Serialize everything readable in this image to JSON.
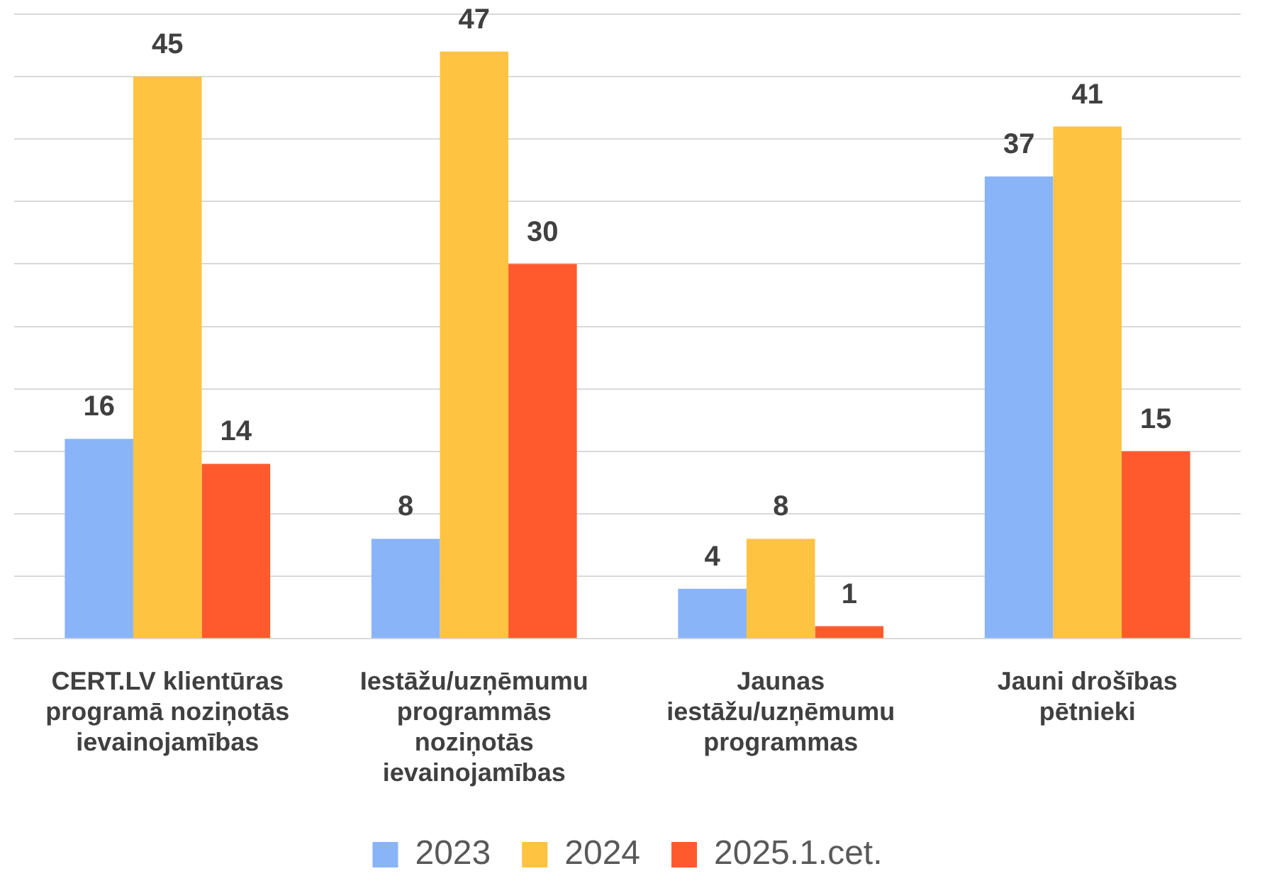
{
  "chart_data": {
    "type": "bar",
    "categories": [
      "CERT.LV klientūras programā noziņotās ievainojamības",
      "Iestāžu/uzņēmumu programmās noziņotās ievainojamības",
      "Jaunas iestāžu/uzņēmumu programmas",
      "Jauni drošības pētnieki"
    ],
    "series": [
      {
        "name": "2023",
        "color": "#8ab4f8",
        "values": [
          16,
          8,
          4,
          37
        ]
      },
      {
        "name": "2024",
        "color": "#ffc342",
        "values": [
          45,
          47,
          8,
          41
        ]
      },
      {
        "name": "2025.1.cet.",
        "color": "#ff5a2e",
        "values": [
          14,
          30,
          1,
          15
        ]
      }
    ],
    "ylim": [
      0,
      50
    ],
    "yticks": [
      {
        "value": 0,
        "label": null
      },
      {
        "value": 5,
        "label": null
      },
      {
        "value": 10,
        "label": null
      },
      {
        "value": 15,
        "label": null
      },
      {
        "value": 20,
        "label": null
      },
      {
        "value": 25,
        "label": null
      },
      {
        "value": 30,
        "label": null
      },
      {
        "value": 35,
        "label": null
      },
      {
        "value": 40,
        "label": null
      },
      {
        "value": 45,
        "label": null
      },
      {
        "value": 50,
        "label": null
      }
    ],
    "grid": "y",
    "tick_labels": "x",
    "data_labels": true,
    "legend": "bottom"
  }
}
